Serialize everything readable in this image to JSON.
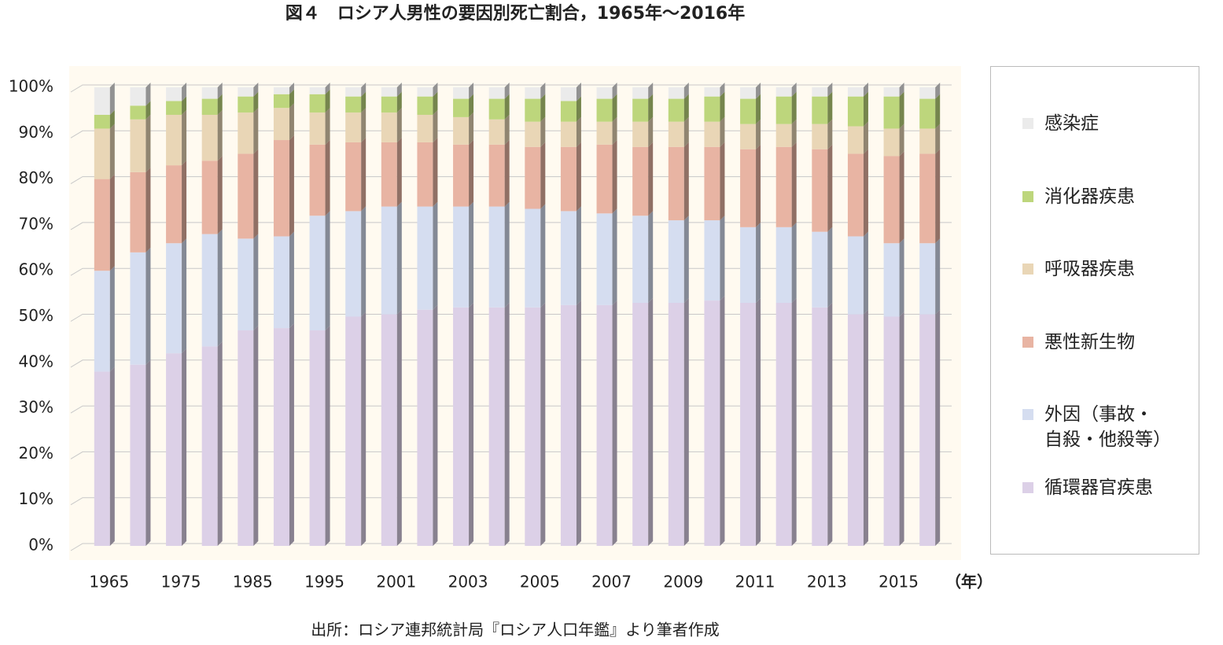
{
  "chart_data": {
    "type": "stacked-bar-3d",
    "title": "図４　ロシア人男性の要因別死亡割合，1965年〜2016年",
    "x_label": "（年）",
    "source": "出所：ロシア連邦統計局『ロシア人口年鑑』より筆者作成",
    "categories": [
      "1965",
      null,
      "1975",
      null,
      "1985",
      null,
      "1995",
      null,
      "2001",
      null,
      "2003",
      null,
      "2005",
      null,
      "2007",
      null,
      "2009",
      null,
      "2011",
      null,
      "2013",
      null,
      "2015",
      null
    ],
    "series": [
      {
        "name": "循環器官疾患",
        "color": "#dcd0e7",
        "values": [
          38,
          39.5,
          42,
          43.5,
          47,
          47.5,
          47,
          50,
          50.5,
          51.5,
          52,
          52,
          52,
          52.5,
          52.5,
          53,
          53,
          53.5,
          53,
          53,
          52,
          50.5,
          50,
          50.5
        ]
      },
      {
        "name": "外因（事故・自殺・他殺等）",
        "color": "#d5ddf0",
        "values": [
          22,
          24.5,
          24,
          24.5,
          20,
          20,
          25,
          23,
          23.5,
          22.5,
          22,
          22,
          21.5,
          20.5,
          20,
          19,
          18,
          17.5,
          16.5,
          16.5,
          16.5,
          17,
          16,
          15.5
        ]
      },
      {
        "name": "悪性新生物",
        "color": "#e8b4a3",
        "values": [
          20,
          17.5,
          17,
          16,
          18.5,
          21,
          15.5,
          15,
          14,
          14,
          13.5,
          13.5,
          13.5,
          14,
          15,
          15,
          16,
          16,
          17,
          17.5,
          18,
          18,
          19,
          19.5
        ]
      },
      {
        "name": "呼吸器疾患",
        "color": "#e9d6b6",
        "values": [
          11,
          11.5,
          11,
          10,
          9,
          7,
          7,
          6.5,
          6.5,
          6,
          6,
          5.5,
          5.5,
          5.5,
          5,
          5.5,
          5.5,
          5.5,
          5.5,
          5,
          5.5,
          6,
          6,
          5.5
        ]
      },
      {
        "name": "消化器疾患",
        "color": "#bdd67c",
        "values": [
          3,
          3,
          3,
          3.5,
          3.5,
          3,
          4,
          3.5,
          3.5,
          4,
          4,
          4.5,
          5,
          4.5,
          5,
          5,
          5,
          5.5,
          5.5,
          6,
          6,
          6.5,
          7,
          6.5
        ]
      },
      {
        "name": "感染症",
        "color": "#ebebeb",
        "values": [
          6,
          4,
          3,
          2.5,
          2,
          1.5,
          1.5,
          2,
          2,
          2,
          2.5,
          2.5,
          2.5,
          3,
          2.5,
          2.5,
          2.5,
          2,
          2.5,
          2,
          2,
          2,
          2,
          2.5
        ]
      }
    ],
    "ylim": [
      0,
      100
    ],
    "yticks": [
      {
        "value": 0,
        "label": "0%"
      },
      {
        "value": 10,
        "label": "10%"
      },
      {
        "value": 20,
        "label": "20%"
      },
      {
        "value": 30,
        "label": "30%"
      },
      {
        "value": 40,
        "label": "40%"
      },
      {
        "value": 50,
        "label": "50%"
      },
      {
        "value": 60,
        "label": "60%"
      },
      {
        "value": 70,
        "label": "70%"
      },
      {
        "value": 80,
        "label": "80%"
      },
      {
        "value": 90,
        "label": "90%"
      },
      {
        "value": 100,
        "label": "100%"
      }
    ],
    "grid": true
  }
}
